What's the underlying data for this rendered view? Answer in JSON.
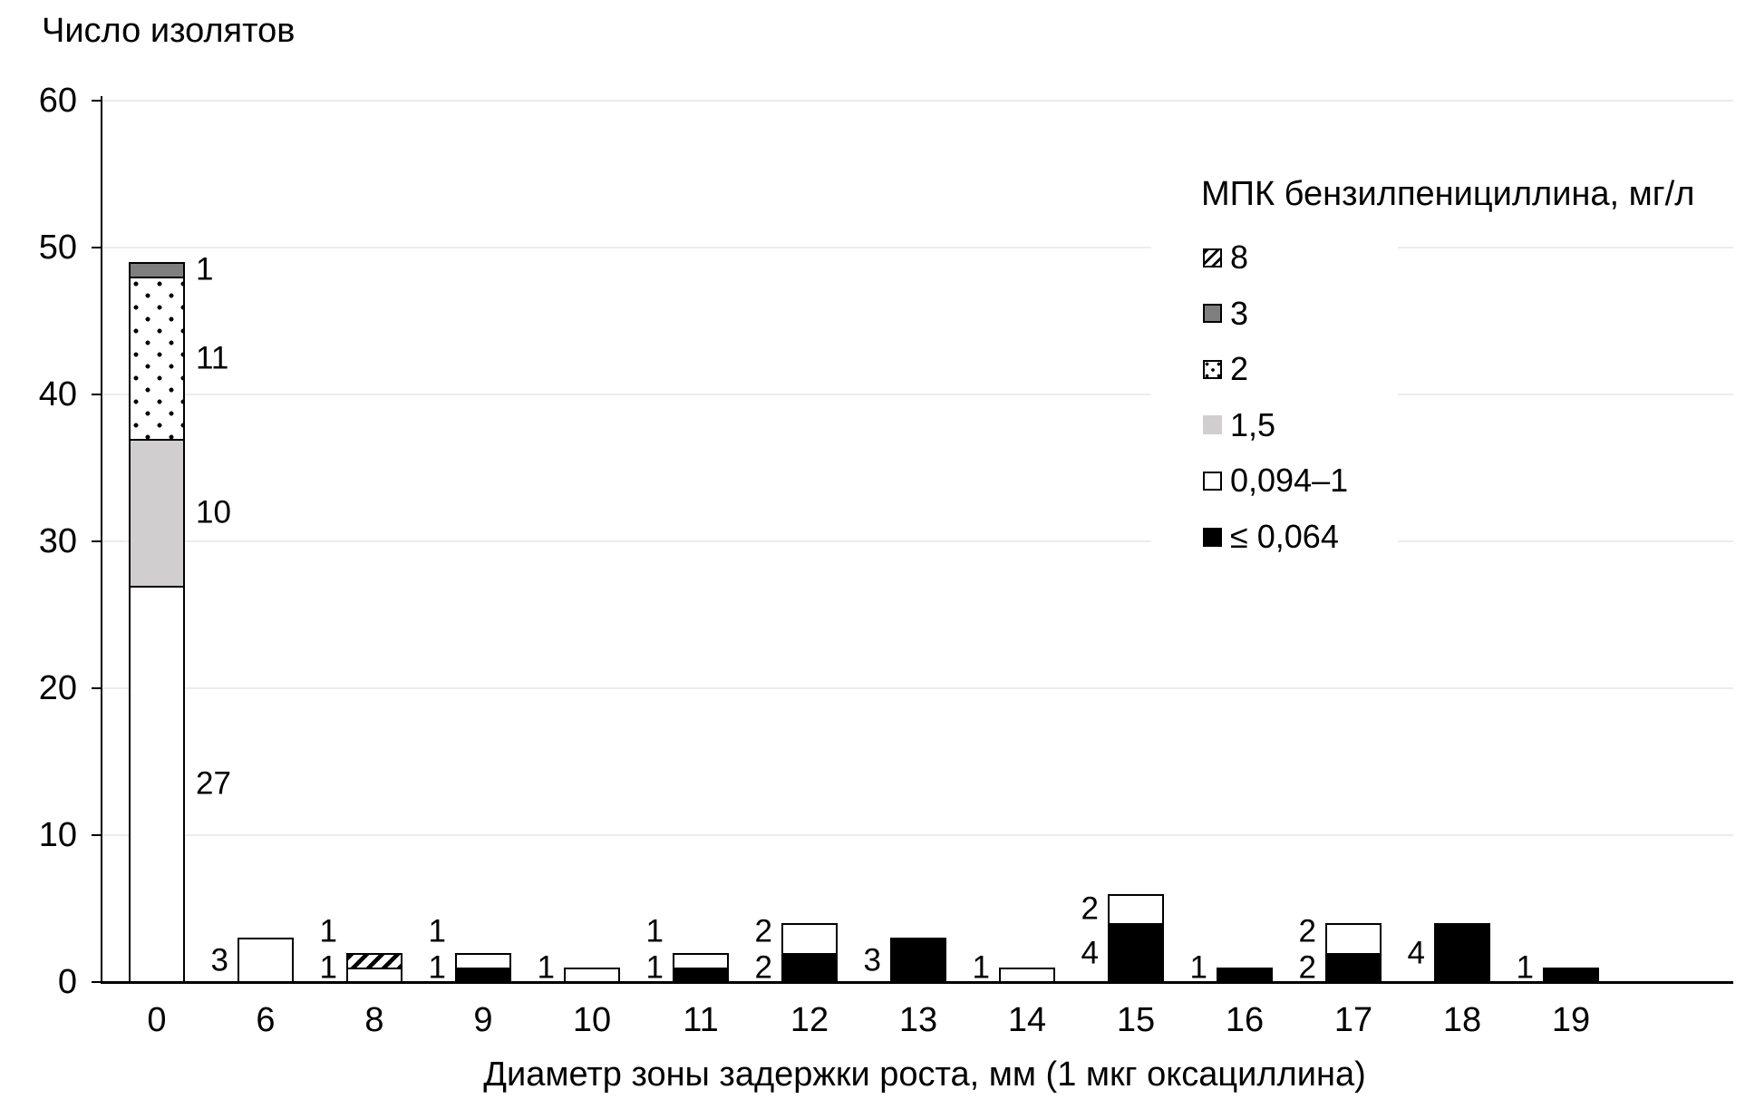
{
  "chart_data": {
    "type": "bar",
    "stacked": true,
    "title": "",
    "ylabel": "Число изолятов",
    "xlabel": "Диаметр зоны задержки роста, мм (1 мкг оксациллина)",
    "legend_title": "МПК бензилпенициллина, мг/л",
    "legend_position": "right-top",
    "grid": true,
    "ylim": [
      0,
      60
    ],
    "ytick_step": 10,
    "categories": [
      "0",
      "6",
      "8",
      "9",
      "10",
      "11",
      "12",
      "13",
      "14",
      "15",
      "16",
      "17",
      "18",
      "19"
    ],
    "series": [
      {
        "name": "8",
        "pattern": "hatch",
        "color": "#ffffff",
        "values": [
          0,
          0,
          1,
          0,
          0,
          0,
          0,
          0,
          0,
          0,
          0,
          0,
          0,
          0
        ]
      },
      {
        "name": "3",
        "pattern": "solid",
        "color": "#7f7f7f",
        "values": [
          1,
          0,
          0,
          0,
          0,
          0,
          0,
          0,
          0,
          0,
          0,
          0,
          0,
          0
        ]
      },
      {
        "name": "2",
        "pattern": "dots",
        "color": "#ffffff",
        "values": [
          11,
          0,
          0,
          0,
          0,
          0,
          0,
          0,
          0,
          0,
          0,
          0,
          0,
          0
        ]
      },
      {
        "name": "1,5",
        "pattern": "solid",
        "color": "#d0cece",
        "legend_swatch_border": false,
        "values": [
          10,
          0,
          0,
          0,
          0,
          0,
          0,
          0,
          0,
          0,
          0,
          0,
          0,
          0
        ]
      },
      {
        "name": "0,094–1",
        "pattern": "solid",
        "color": "#ffffff",
        "values": [
          27,
          3,
          1,
          1,
          1,
          1,
          2,
          0,
          1,
          2,
          0,
          2,
          0,
          0
        ]
      },
      {
        "name": "≤ 0,064",
        "pattern": "solid",
        "color": "#000000",
        "values": [
          0,
          0,
          0,
          1,
          0,
          1,
          2,
          3,
          0,
          4,
          1,
          2,
          4,
          1
        ]
      }
    ],
    "bar_totals": [
      49,
      3,
      2,
      2,
      1,
      2,
      4,
      3,
      1,
      6,
      1,
      4,
      4,
      1
    ],
    "colors": {
      "axis": "#000000",
      "gridline": "#ececec",
      "text": "#000000",
      "background": "#ffffff"
    }
  }
}
